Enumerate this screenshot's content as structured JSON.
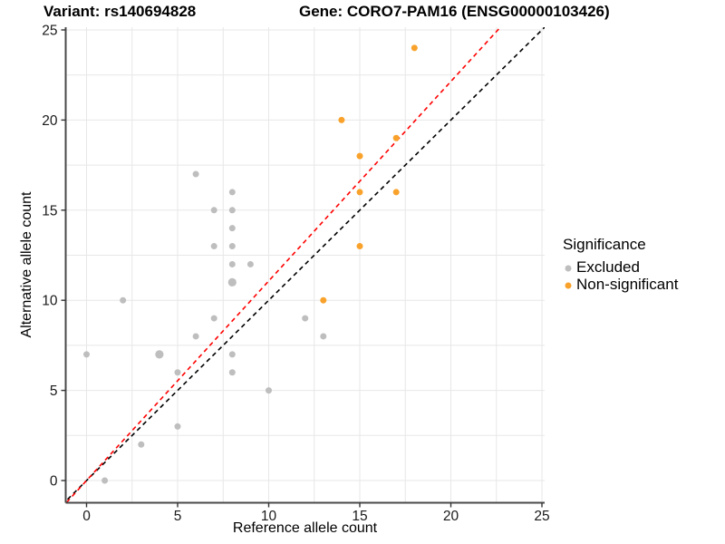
{
  "titles": {
    "variant": "Variant: rs140694828",
    "gene": "Gene: CORO7-PAM16 (ENSG00000103426)"
  },
  "chart_data": {
    "type": "scatter",
    "xlabel": "Reference allele count",
    "ylabel": "Alternative allele count",
    "xlim": [
      0,
      25
    ],
    "ylim": [
      0,
      25
    ],
    "xticks": [
      0,
      5,
      10,
      15,
      20,
      25
    ],
    "yticks": [
      0,
      5,
      10,
      15,
      20,
      25
    ],
    "minor_grid_step": 2.5,
    "grid": "on",
    "colors": {
      "excluded": "#BEBEBE",
      "non_significant": "#F9A22B",
      "identity_line": "#000000",
      "fit_line": "#FF0000",
      "gridline": "#E7E7E7",
      "axis_line": "#4A4A4A"
    },
    "legend": {
      "title": "Significance",
      "position": "right",
      "entries": [
        {
          "label": "Excluded",
          "color": "#BEBEBE"
        },
        {
          "label": "Non-significant",
          "color": "#F9A22B"
        }
      ]
    },
    "series": [
      {
        "name": "Excluded",
        "color": "#BEBEBE",
        "points": [
          [
            0,
            7
          ],
          [
            1,
            0
          ],
          [
            2,
            10
          ],
          [
            3,
            2
          ],
          [
            4,
            7
          ],
          [
            5,
            3
          ],
          [
            5,
            6
          ],
          [
            6,
            8
          ],
          [
            6,
            17
          ],
          [
            7,
            9
          ],
          [
            7,
            13
          ],
          [
            7,
            15
          ],
          [
            8,
            6
          ],
          [
            8,
            7
          ],
          [
            8,
            11
          ],
          [
            8,
            12
          ],
          [
            8,
            13
          ],
          [
            8,
            14
          ],
          [
            8,
            15
          ],
          [
            8,
            16
          ],
          [
            9,
            12
          ],
          [
            10,
            5
          ],
          [
            12,
            9
          ],
          [
            13,
            8
          ]
        ]
      },
      {
        "name": "Non-significant",
        "color": "#F9A22B",
        "points": [
          [
            13,
            10
          ],
          [
            14,
            20
          ],
          [
            15,
            13
          ],
          [
            15,
            16
          ],
          [
            15,
            18
          ],
          [
            17,
            16
          ],
          [
            17,
            19
          ],
          [
            18,
            24
          ]
        ]
      }
    ],
    "emphasized_points": [
      [
        4,
        7
      ],
      [
        8,
        11
      ]
    ],
    "lines": [
      {
        "name": "identity-line",
        "slope": 1.0,
        "intercept": 0,
        "color": "#000000",
        "dashed": true
      },
      {
        "name": "fit-line",
        "slope": 1.107,
        "intercept": 0,
        "color": "#FF0000",
        "dashed": true
      }
    ]
  }
}
